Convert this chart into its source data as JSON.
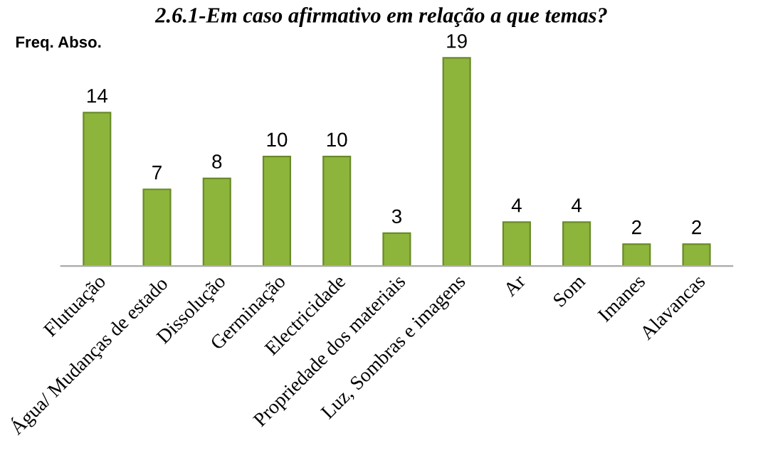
{
  "chart_data": {
    "type": "bar",
    "title": "2.6.1-Em caso afirmativo em relação a que temas?",
    "ylabel": "Freq. Abso.",
    "categories": [
      "Flutuação",
      "Água/ Mudanças de estado",
      "Dissolução",
      "Germinação",
      "Electricidade",
      "Propriedade dos materiais",
      "Luz, Sombras e imagens",
      "Ar",
      "Som",
      "Imanes",
      "Alavancas"
    ],
    "values": [
      14,
      7,
      8,
      10,
      10,
      3,
      19,
      4,
      4,
      2,
      2
    ],
    "color": "#8db53c",
    "data_labels": true,
    "grid": false,
    "legend": false
  }
}
